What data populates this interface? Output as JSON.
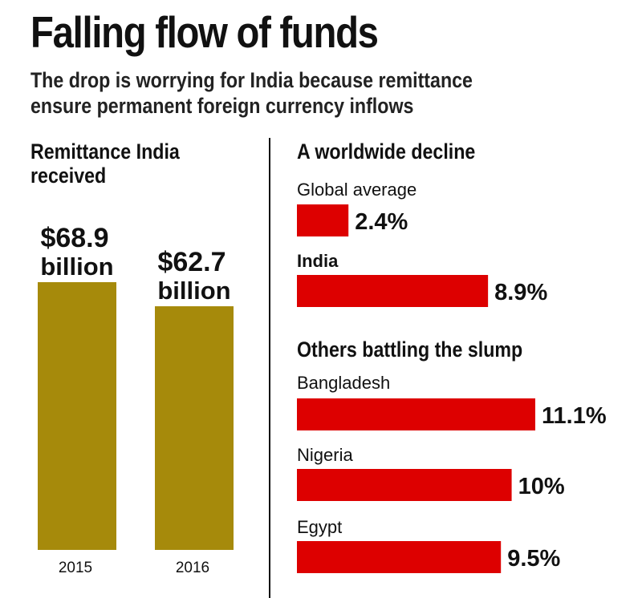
{
  "header": {
    "title": "Falling flow of funds",
    "subtitle_line1": "The drop is worrying for India because remittance",
    "subtitle_line2": "ensure permanent foreign currency inflows"
  },
  "left_panel": {
    "heading_line1": "Remittance India",
    "heading_line2": "received"
  },
  "right_panel": {
    "heading": "A worldwide decline",
    "others_heading": "Others battling the slump"
  },
  "colors": {
    "gold_bar": "#A68A0B",
    "red_bar": "#DD0000",
    "text": "#111111"
  },
  "chart_data": [
    {
      "type": "bar",
      "title": "Remittance India received",
      "categories": [
        "2015",
        "2016"
      ],
      "values": [
        68.9,
        62.7
      ],
      "value_labels": [
        [
          "$68.9",
          "billion"
        ],
        [
          "$62.7",
          "billion"
        ]
      ],
      "unit": "billion USD",
      "grid": false,
      "legend": "none"
    },
    {
      "type": "bar",
      "orientation": "horizontal",
      "title": "A worldwide decline",
      "categories": [
        "Global average",
        "India",
        "Bangladesh",
        "Nigeria",
        "Egypt"
      ],
      "values": [
        2.4,
        8.9,
        11.1,
        10,
        9.5
      ],
      "value_labels": [
        "2.4%",
        "8.9%",
        "11.1%",
        "10%",
        "9.5%"
      ],
      "unit": "%",
      "grid": false,
      "legend": "none"
    }
  ]
}
